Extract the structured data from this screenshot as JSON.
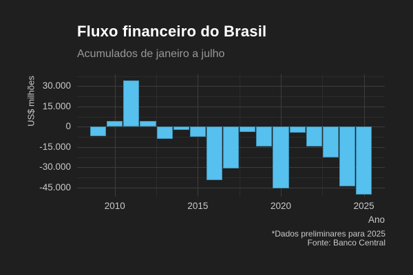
{
  "chart_data": {
    "type": "bar",
    "title": "Fluxo financeiro do Brasil",
    "subtitle": "Acumulados de janeiro a julho",
    "xlabel": "Ano",
    "ylabel": "US$ milhões",
    "categories": [
      2009,
      2010,
      2011,
      2012,
      2013,
      2014,
      2015,
      2016,
      2017,
      2018,
      2019,
      2020,
      2021,
      2022,
      2023,
      2024,
      2025
    ],
    "values": [
      -7000,
      4000,
      34500,
      4500,
      -9000,
      -2500,
      -7500,
      -39500,
      -31000,
      -4000,
      -14500,
      -45500,
      -4300,
      -14700,
      -23000,
      -44000,
      -50000
    ],
    "unit": "US$ milhões",
    "ylim": [
      -52000,
      38500
    ],
    "ytick_values": [
      30000,
      15000,
      0,
      -15000,
      -30000,
      -45000
    ],
    "ytick_labels": [
      "30.000",
      "15.000",
      "0",
      "-15.000",
      "-30.000",
      "-45.000"
    ],
    "ytick_minor_values": [
      37500,
      22500,
      7500,
      -7500,
      -22500,
      -37500
    ],
    "xtick_values": [
      2010,
      2015,
      2020,
      2025
    ],
    "xtick_labels": [
      "2010",
      "2015",
      "2020",
      "2025"
    ],
    "xtick_minor_values": [
      2012.5,
      2017.5,
      2022.5
    ],
    "grid": true,
    "legend": false,
    "caption_lines": [
      "*Dados preliminares para 2025",
      "Fonte: Banco Central"
    ]
  },
  "colors": {
    "background": "#1f1f1f",
    "bar": "#56c0ee",
    "grid_major": "#3d3d3d",
    "grid_minor": "#2c2c2c",
    "title_text": "#ffffff",
    "subtitle_text": "#999999",
    "axis_text": "#c9c9c9"
  }
}
